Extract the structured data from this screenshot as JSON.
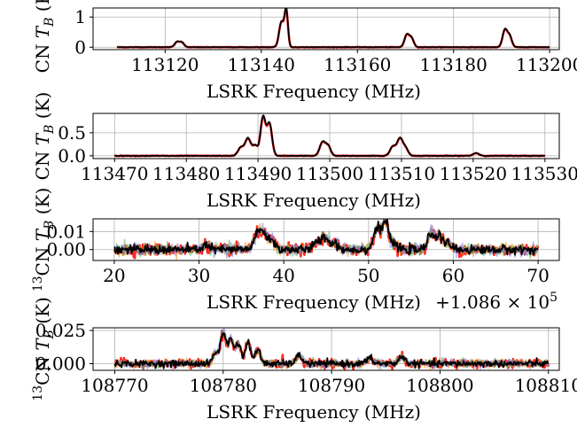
{
  "chart_data": [
    {
      "type": "line",
      "xlabel": "LSRK Frequency (MHz)",
      "ylabel": "CN T_B (K)",
      "ylabel_parts": [
        "CN ",
        "T",
        "B",
        " (K)"
      ],
      "xlim": [
        113105,
        113202
      ],
      "ylim": [
        -0.08,
        1.3
      ],
      "xticks": [
        113120,
        113140,
        113160,
        113180,
        113200
      ],
      "xtick_labels": [
        "113120",
        "113140",
        "113160",
        "113180",
        "113200"
      ],
      "yticks": [
        0,
        1
      ],
      "ytick_labels": [
        "0",
        "1"
      ],
      "x_offset_label": "",
      "grid": true,
      "x_range": [
        113110,
        113200
      ],
      "peaks": [
        {
          "x": 113122.5,
          "height": 0.18,
          "width": 0.5
        },
        {
          "x": 113123.5,
          "height": 0.15,
          "width": 0.45
        },
        {
          "x": 113144.2,
          "height": 0.85,
          "width": 0.5
        },
        {
          "x": 113145.2,
          "height": 1.2,
          "width": 0.35
        },
        {
          "x": 113170.3,
          "height": 0.42,
          "width": 0.5
        },
        {
          "x": 113171.3,
          "height": 0.28,
          "width": 0.45
        },
        {
          "x": 113190.7,
          "height": 0.58,
          "width": 0.5
        },
        {
          "x": 113191.7,
          "height": 0.35,
          "width": 0.45
        }
      ],
      "noise": 0.004,
      "series": [
        {
          "color": "#ff0000"
        },
        {
          "color": "#000000"
        }
      ]
    },
    {
      "type": "line",
      "xlabel": "LSRK Frequency (MHz)",
      "ylabel": "CN T_B (K)",
      "ylabel_parts": [
        "CN ",
        "T",
        "B",
        " (K)"
      ],
      "xlim": [
        113467,
        113532
      ],
      "ylim": [
        -0.06,
        0.92
      ],
      "xticks": [
        113470,
        113480,
        113490,
        113500,
        113510,
        113520,
        113530
      ],
      "xtick_labels": [
        "113470",
        "113480",
        "113490",
        "113500",
        "113510",
        "113520",
        "113530"
      ],
      "yticks": [
        0,
        0.5
      ],
      "ytick_labels": [
        "0.0",
        "0.5"
      ],
      "x_offset_label": "",
      "grid": true,
      "x_range": [
        113470,
        113530
      ],
      "peaks": [
        {
          "x": 113487.6,
          "height": 0.18,
          "width": 0.4
        },
        {
          "x": 113488.6,
          "height": 0.38,
          "width": 0.4
        },
        {
          "x": 113489.6,
          "height": 0.22,
          "width": 0.35
        },
        {
          "x": 113490.7,
          "height": 0.85,
          "width": 0.35
        },
        {
          "x": 113491.6,
          "height": 0.7,
          "width": 0.35
        },
        {
          "x": 113499.0,
          "height": 0.3,
          "width": 0.4
        },
        {
          "x": 113499.8,
          "height": 0.2,
          "width": 0.35
        },
        {
          "x": 113508.8,
          "height": 0.2,
          "width": 0.4
        },
        {
          "x": 113509.8,
          "height": 0.38,
          "width": 0.4
        },
        {
          "x": 113510.6,
          "height": 0.15,
          "width": 0.35
        },
        {
          "x": 113520.4,
          "height": 0.06,
          "width": 0.4
        }
      ],
      "noise": 0.003,
      "series": [
        {
          "color": "#ff0000"
        },
        {
          "color": "#000000"
        }
      ]
    },
    {
      "type": "line",
      "xlabel": "LSRK Frequency (MHz)",
      "ylabel": "13CN T_B (K)",
      "ylabel_parts": [
        "13",
        "CN ",
        "T",
        "B",
        " (K)"
      ],
      "xlim": [
        17.5,
        72.5
      ],
      "ylim": [
        -0.006,
        0.017
      ],
      "xticks": [
        20,
        30,
        40,
        50,
        60,
        70
      ],
      "xtick_labels": [
        "20",
        "30",
        "40",
        "50",
        "60",
        "70"
      ],
      "yticks": [
        0,
        0.01
      ],
      "ytick_labels": [
        "0.00",
        "0.01"
      ],
      "x_offset_label": "+1.086 × 10",
      "x_offset_exponent": "5",
      "grid": true,
      "x_range": [
        20,
        70
      ],
      "peaks": [
        {
          "x": 30.8,
          "height": 0.0025,
          "width": 0.4
        },
        {
          "x": 36.8,
          "height": 0.006,
          "width": 0.45
        },
        {
          "x": 37.5,
          "height": 0.008,
          "width": 0.45
        },
        {
          "x": 38.5,
          "height": 0.005,
          "width": 0.45
        },
        {
          "x": 43.8,
          "height": 0.003,
          "width": 0.45
        },
        {
          "x": 44.8,
          "height": 0.007,
          "width": 0.45
        },
        {
          "x": 46.0,
          "height": 0.0035,
          "width": 0.4
        },
        {
          "x": 51.0,
          "height": 0.012,
          "width": 0.4
        },
        {
          "x": 52.0,
          "height": 0.0155,
          "width": 0.35
        },
        {
          "x": 53.0,
          "height": 0.003,
          "width": 0.4
        },
        {
          "x": 57.4,
          "height": 0.009,
          "width": 0.4
        },
        {
          "x": 58.4,
          "height": 0.007,
          "width": 0.4
        },
        {
          "x": 59.4,
          "height": 0.003,
          "width": 0.4
        }
      ],
      "noise": 0.0012,
      "series": [
        {
          "color": "#ff0000"
        },
        {
          "color": "#ff8c00"
        },
        {
          "color": "#4caf50"
        },
        {
          "color": "#8080ff"
        },
        {
          "color": "#000000"
        }
      ]
    },
    {
      "type": "line",
      "xlabel": "LSRK Frequency (MHz)",
      "ylabel": "13CN T_B (K)",
      "ylabel_parts": [
        "13",
        "CN ",
        "T",
        "B",
        " (K)"
      ],
      "xlim": [
        108768,
        108811
      ],
      "ylim": [
        -0.005,
        0.027
      ],
      "xticks": [
        108770,
        108780,
        108790,
        108800,
        108810
      ],
      "xtick_labels": [
        "108770",
        "108780",
        "108790",
        "108800",
        "108810"
      ],
      "yticks": [
        0,
        0.025
      ],
      "ytick_labels": [
        "0.000",
        "0.025"
      ],
      "x_offset_label": "",
      "grid": true,
      "x_range": [
        108770,
        108810
      ],
      "peaks": [
        {
          "x": 108779.3,
          "height": 0.008,
          "width": 0.25
        },
        {
          "x": 108780.0,
          "height": 0.023,
          "width": 0.25
        },
        {
          "x": 108780.7,
          "height": 0.018,
          "width": 0.25
        },
        {
          "x": 108781.4,
          "height": 0.015,
          "width": 0.25
        },
        {
          "x": 108782.3,
          "height": 0.016,
          "width": 0.25
        },
        {
          "x": 108783.2,
          "height": 0.01,
          "width": 0.25
        },
        {
          "x": 108787.0,
          "height": 0.006,
          "width": 0.3
        },
        {
          "x": 108793.5,
          "height": 0.004,
          "width": 0.3
        },
        {
          "x": 108796.5,
          "height": 0.005,
          "width": 0.3
        }
      ],
      "noise": 0.0012,
      "series": [
        {
          "color": "#ff0000"
        },
        {
          "color": "#ff8c00"
        },
        {
          "color": "#4caf50"
        },
        {
          "color": "#8080ff"
        },
        {
          "color": "#000000"
        }
      ]
    }
  ]
}
